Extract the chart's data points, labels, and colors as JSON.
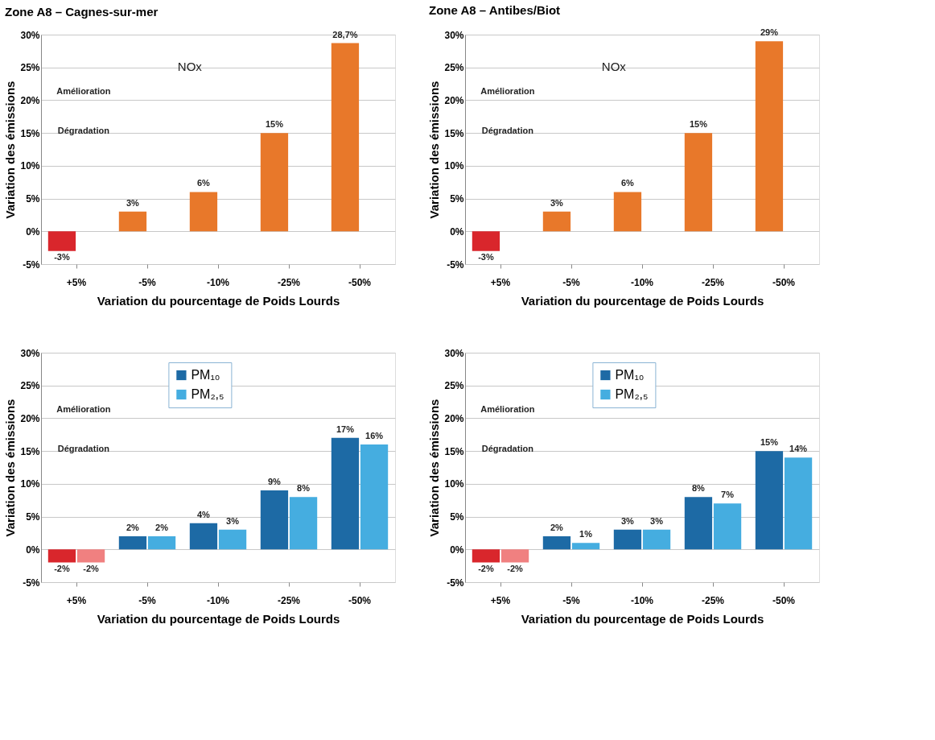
{
  "chart_data": [
    {
      "type": "bar",
      "title": "Zone A8 – Cagnes-sur-mer",
      "xlabel": "Variation du pourcentage de Poids Lourds",
      "ylabel": "Variation des émissions",
      "categories": [
        "+5%",
        "-5%",
        "-10%",
        "-25%",
        "-50%"
      ],
      "series": [
        {
          "color": "#e8782a",
          "colors": [
            "#d9262c",
            "#e8782a",
            "#e8782a",
            "#e8782a",
            "#e8782a"
          ],
          "values": [
            -3,
            3,
            6,
            15,
            28.7
          ],
          "value_labels": [
            "-3%",
            "3%",
            "6%",
            "15%",
            "28,7%"
          ]
        }
      ],
      "ylim": [
        -5,
        30
      ],
      "yticks": [
        {
          "value": -5,
          "label": "-5%"
        },
        {
          "value": 0,
          "label": "0%"
        },
        {
          "value": 5,
          "label": "5%"
        },
        {
          "value": 10,
          "label": "10%"
        },
        {
          "value": 15,
          "label": "15%"
        },
        {
          "value": 20,
          "label": "20%"
        },
        {
          "value": 25,
          "label": "25%"
        },
        {
          "value": 30,
          "label": "30%"
        }
      ],
      "grid": "y",
      "annotations": [
        "NOx",
        "Amélioration",
        "Dégradation"
      ]
    },
    {
      "type": "bar",
      "title": "Zone A8 – Antibes/Biot",
      "xlabel": "Variation du pourcentage de Poids Lourds",
      "ylabel": "Variation des émissions",
      "categories": [
        "+5%",
        "-5%",
        "-10%",
        "-25%",
        "-50%"
      ],
      "series": [
        {
          "color": "#e8782a",
          "colors": [
            "#d9262c",
            "#e8782a",
            "#e8782a",
            "#e8782a",
            "#e8782a"
          ],
          "values": [
            -3,
            3,
            6,
            15,
            29
          ],
          "value_labels": [
            "-3%",
            "3%",
            "6%",
            "15%",
            "29%"
          ]
        }
      ],
      "ylim": [
        -5,
        30
      ],
      "yticks": [
        {
          "value": -5,
          "label": "-5%"
        },
        {
          "value": 0,
          "label": "0%"
        },
        {
          "value": 5,
          "label": "5%"
        },
        {
          "value": 10,
          "label": "10%"
        },
        {
          "value": 15,
          "label": "15%"
        },
        {
          "value": 20,
          "label": "20%"
        },
        {
          "value": 25,
          "label": "25%"
        },
        {
          "value": 30,
          "label": "30%"
        }
      ],
      "grid": "y",
      "annotations": [
        "NOx",
        "Amélioration",
        "Dégradation"
      ]
    },
    {
      "type": "bar",
      "xlabel": "Variation du pourcentage de Poids Lourds",
      "ylabel": "Variation des émissions",
      "categories": [
        "+5%",
        "-5%",
        "-10%",
        "-25%",
        "-50%"
      ],
      "series": [
        {
          "name": "PM₁₀",
          "color": "#1d6aa5",
          "colors": [
            "#d9262c",
            "#1d6aa5",
            "#1d6aa5",
            "#1d6aa5",
            "#1d6aa5"
          ],
          "values": [
            -2,
            2,
            4,
            9,
            17
          ],
          "value_labels": [
            "-2%",
            "2%",
            "4%",
            "9%",
            "17%"
          ]
        },
        {
          "name": "PM₂,₅",
          "color": "#45ade0",
          "colors": [
            "#f08080",
            "#45ade0",
            "#45ade0",
            "#45ade0",
            "#45ade0"
          ],
          "values": [
            -2,
            2,
            3,
            8,
            16
          ],
          "value_labels": [
            "-2%",
            "2%",
            "3%",
            "8%",
            "16%"
          ]
        }
      ],
      "ylim": [
        -5,
        30
      ],
      "yticks": [
        {
          "value": -5,
          "label": "-5%"
        },
        {
          "value": 0,
          "label": "0%"
        },
        {
          "value": 5,
          "label": "5%"
        },
        {
          "value": 10,
          "label": "10%"
        },
        {
          "value": 15,
          "label": "15%"
        },
        {
          "value": 20,
          "label": "20%"
        },
        {
          "value": 25,
          "label": "25%"
        },
        {
          "value": 30,
          "label": "30%"
        }
      ],
      "grid": "y",
      "legend": "top",
      "annotations": [
        "Amélioration",
        "Dégradation"
      ]
    },
    {
      "type": "bar",
      "xlabel": "Variation du pourcentage de Poids Lourds",
      "ylabel": "Variation des émissions",
      "categories": [
        "+5%",
        "-5%",
        "-10%",
        "-25%",
        "-50%"
      ],
      "series": [
        {
          "name": "PM₁₀",
          "color": "#1d6aa5",
          "colors": [
            "#d9262c",
            "#1d6aa5",
            "#1d6aa5",
            "#1d6aa5",
            "#1d6aa5"
          ],
          "values": [
            -2,
            2,
            3,
            8,
            15
          ],
          "value_labels": [
            "-2%",
            "2%",
            "3%",
            "8%",
            "15%"
          ]
        },
        {
          "name": "PM₂,₅",
          "color": "#45ade0",
          "colors": [
            "#f08080",
            "#45ade0",
            "#45ade0",
            "#45ade0",
            "#45ade0"
          ],
          "values": [
            -2,
            1,
            3,
            7,
            14
          ],
          "value_labels": [
            "-2%",
            "1%",
            "3%",
            "7%",
            "14%"
          ]
        }
      ],
      "ylim": [
        -5,
        30
      ],
      "yticks": [
        {
          "value": -5,
          "label": "-5%"
        },
        {
          "value": 0,
          "label": "0%"
        },
        {
          "value": 5,
          "label": "5%"
        },
        {
          "value": 10,
          "label": "10%"
        },
        {
          "value": 15,
          "label": "15%"
        },
        {
          "value": 20,
          "label": "20%"
        },
        {
          "value": 25,
          "label": "25%"
        },
        {
          "value": 30,
          "label": "30%"
        }
      ],
      "grid": "y",
      "legend": "top",
      "annotations": [
        "Amélioration",
        "Dégradation"
      ]
    }
  ]
}
